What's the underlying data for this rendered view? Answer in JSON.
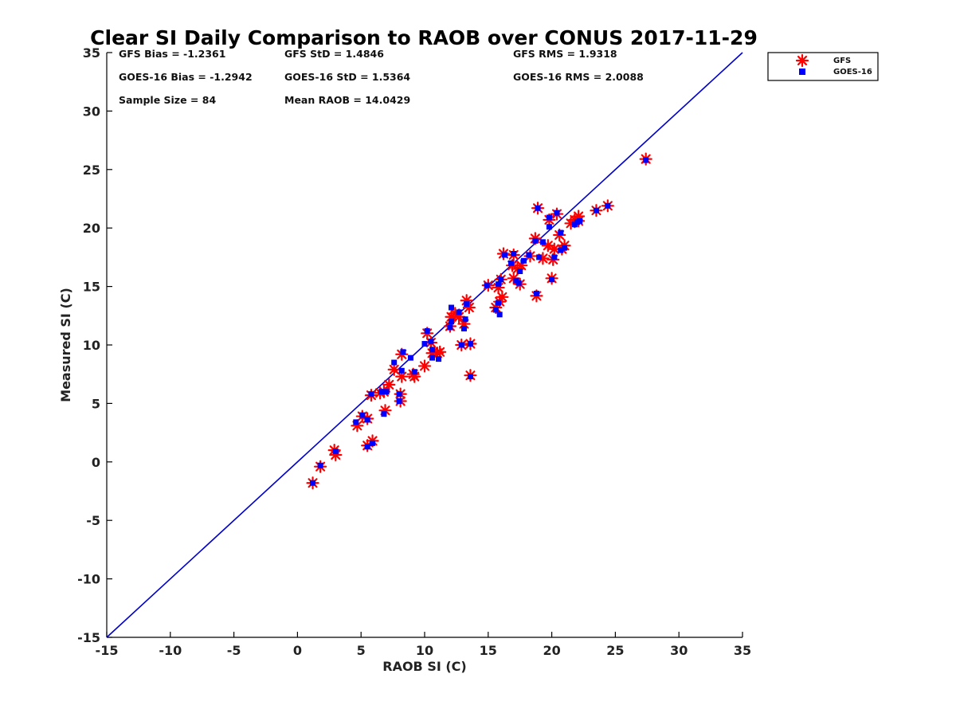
{
  "chart_data": {
    "type": "scatter",
    "title": "Clear SI Daily Comparison to RAOB over CONUS 2017-11-29",
    "xlabel": "RAOB SI (C)",
    "ylabel": "Measured SI (C)",
    "xlim": [
      -15,
      35
    ],
    "ylim": [
      -15,
      35
    ],
    "xticks": [
      "-15",
      "-10",
      "-5",
      "0",
      "5",
      "10",
      "15",
      "20",
      "25",
      "30",
      "35"
    ],
    "yticks": [
      "35",
      "30",
      "25",
      "20",
      "15",
      "10",
      "5",
      "0",
      "-5",
      "-10",
      "-15"
    ],
    "reference_line": {
      "type": "one-to-one",
      "color": "#0000cc"
    },
    "legend_position": "top-right, outside plot",
    "stats": {
      "gfs_bias": "GFS Bias = -1.2361",
      "gfs_std": "GFS StD = 1.4846",
      "gfs_rms": "GFS RMS = 1.9318",
      "goes_bias": "GOES-16 Bias = -1.2942",
      "goes_std": "GOES-16 StD = 1.5364",
      "goes_rms": "GOES-16 RMS = 2.0088",
      "sample_size": "Sample Size = 84",
      "mean_raob": "Mean RAOB = 14.0429"
    },
    "series": [
      {
        "name": "GFS",
        "marker": "asterisk",
        "color": "#ff0000",
        "points": [
          [
            1.2,
            -1.8
          ],
          [
            1.8,
            -0.4
          ],
          [
            3.0,
            0.6
          ],
          [
            2.9,
            1.0
          ],
          [
            5.5,
            1.4
          ],
          [
            5.9,
            1.8
          ],
          [
            4.7,
            3.1
          ],
          [
            5.1,
            3.9
          ],
          [
            5.5,
            3.7
          ],
          [
            6.9,
            4.4
          ],
          [
            5.8,
            5.7
          ],
          [
            6.5,
            5.9
          ],
          [
            6.8,
            6.0
          ],
          [
            8.1,
            5.2
          ],
          [
            8.1,
            5.8
          ],
          [
            7.2,
            6.6
          ],
          [
            7.6,
            7.9
          ],
          [
            8.2,
            7.3
          ],
          [
            9.1,
            7.5
          ],
          [
            9.2,
            7.3
          ],
          [
            10.0,
            8.2
          ],
          [
            11.2,
            9.4
          ],
          [
            10.6,
            9.3
          ],
          [
            11.0,
            9.3
          ],
          [
            8.2,
            9.2
          ],
          [
            10.2,
            11.0
          ],
          [
            10.5,
            10.2
          ],
          [
            12.0,
            11.6
          ],
          [
            12.1,
            12.4
          ],
          [
            12.7,
            12.4
          ],
          [
            12.4,
            12.7
          ],
          [
            13.1,
            11.8
          ],
          [
            13.3,
            13.8
          ],
          [
            13.5,
            13.2
          ],
          [
            12.9,
            10.0
          ],
          [
            13.6,
            10.1
          ],
          [
            13.6,
            7.4
          ],
          [
            15.6,
            13.2
          ],
          [
            15.9,
            13.7
          ],
          [
            15.8,
            14.9
          ],
          [
            16.1,
            14.1
          ],
          [
            16.0,
            15.6
          ],
          [
            15.0,
            15.1
          ],
          [
            16.2,
            17.8
          ],
          [
            17.0,
            17.7
          ],
          [
            16.9,
            16.8
          ],
          [
            17.3,
            16.5
          ],
          [
            17.5,
            15.2
          ],
          [
            17.6,
            16.8
          ],
          [
            17.0,
            15.7
          ],
          [
            18.3,
            17.6
          ],
          [
            18.8,
            14.2
          ],
          [
            18.7,
            19.1
          ],
          [
            18.9,
            21.7
          ],
          [
            19.3,
            17.4
          ],
          [
            19.7,
            18.5
          ],
          [
            19.8,
            20.7
          ],
          [
            20.1,
            17.3
          ],
          [
            20.2,
            18.2
          ],
          [
            20.4,
            21.2
          ],
          [
            20.0,
            15.7
          ],
          [
            20.6,
            19.4
          ],
          [
            20.8,
            18.2
          ],
          [
            21.0,
            18.5
          ],
          [
            21.5,
            20.4
          ],
          [
            21.8,
            20.7
          ],
          [
            22.1,
            20.6
          ],
          [
            22.1,
            21.0
          ],
          [
            23.5,
            21.5
          ],
          [
            24.4,
            21.9
          ],
          [
            27.4,
            25.9
          ]
        ]
      },
      {
        "name": "GOES-16",
        "marker": "square",
        "color": "#0000ff",
        "points": [
          [
            1.2,
            -1.8
          ],
          [
            1.8,
            -0.3
          ],
          [
            3.0,
            0.9
          ],
          [
            5.5,
            1.3
          ],
          [
            5.9,
            1.6
          ],
          [
            4.6,
            3.4
          ],
          [
            5.1,
            4.0
          ],
          [
            5.5,
            3.6
          ],
          [
            6.8,
            4.1
          ],
          [
            5.8,
            5.8
          ],
          [
            6.6,
            6.0
          ],
          [
            7.0,
            6.0
          ],
          [
            8.0,
            5.2
          ],
          [
            8.0,
            5.8
          ],
          [
            7.6,
            8.5
          ],
          [
            8.2,
            7.8
          ],
          [
            8.9,
            8.9
          ],
          [
            9.2,
            7.7
          ],
          [
            8.3,
            9.4
          ],
          [
            10.0,
            10.1
          ],
          [
            10.2,
            11.2
          ],
          [
            10.5,
            10.3
          ],
          [
            10.6,
            8.9
          ],
          [
            10.6,
            9.6
          ],
          [
            11.1,
            8.8
          ],
          [
            12.0,
            11.5
          ],
          [
            12.1,
            12.0
          ],
          [
            12.1,
            13.2
          ],
          [
            12.7,
            12.8
          ],
          [
            12.9,
            10.0
          ],
          [
            13.1,
            11.4
          ],
          [
            13.2,
            12.2
          ],
          [
            13.3,
            13.5
          ],
          [
            13.6,
            10.1
          ],
          [
            13.6,
            7.3
          ],
          [
            14.9,
            15.1
          ],
          [
            15.6,
            13.0
          ],
          [
            15.8,
            13.6
          ],
          [
            15.9,
            12.6
          ],
          [
            15.8,
            15.2
          ],
          [
            16.0,
            15.6
          ],
          [
            16.3,
            17.7
          ],
          [
            16.8,
            17.0
          ],
          [
            17.0,
            17.8
          ],
          [
            17.2,
            15.5
          ],
          [
            17.4,
            15.3
          ],
          [
            17.5,
            16.3
          ],
          [
            17.8,
            17.2
          ],
          [
            18.2,
            17.7
          ],
          [
            18.8,
            14.4
          ],
          [
            18.7,
            18.9
          ],
          [
            18.9,
            21.7
          ],
          [
            19.0,
            17.5
          ],
          [
            19.3,
            18.8
          ],
          [
            19.8,
            20.1
          ],
          [
            19.8,
            20.9
          ],
          [
            20.0,
            15.6
          ],
          [
            20.2,
            17.5
          ],
          [
            20.4,
            21.3
          ],
          [
            20.7,
            19.6
          ],
          [
            20.7,
            18.1
          ],
          [
            21.0,
            18.3
          ],
          [
            21.8,
            20.3
          ],
          [
            22.0,
            20.5
          ],
          [
            22.2,
            20.6
          ],
          [
            23.5,
            21.5
          ],
          [
            24.4,
            21.9
          ],
          [
            27.4,
            25.8
          ]
        ]
      }
    ]
  }
}
